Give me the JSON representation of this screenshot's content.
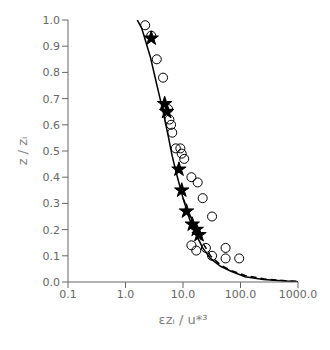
{
  "chart_data": {
    "type": "line",
    "title": "",
    "xlabel": "εzᵢ / u*³",
    "ylabel": "z / zᵢ",
    "log": "x",
    "grid": false,
    "xlim": [
      0.1,
      1000.0
    ],
    "ylim": [
      0.0,
      1.0
    ],
    "xticks": [
      0.1,
      {
        "value": 1.0,
        "label": "1.0"
      },
      {
        "value": 10.0,
        "label": "10.0"
      },
      {
        "value": 100.0,
        "label": "100.0"
      },
      {
        "value": 1000.0,
        "label": "1000.0"
      }
    ],
    "yticks": [
      {
        "value": 0.0,
        "label": "0.0"
      },
      0.1,
      0.2,
      0.3,
      0.4,
      0.5,
      0.6,
      0.7,
      0.8,
      0.9,
      {
        "value": 1.0,
        "label": "1.0"
      }
    ],
    "series": [
      {
        "type": "line",
        "line_style": "solid",
        "color": "#000000",
        "x": [
          1.6,
          1.9,
          2.1,
          2.3,
          2.7,
          3.2,
          3.8,
          4.5,
          5.5,
          6.5,
          8.0,
          10.0,
          13.0,
          17.0,
          22.0,
          30.0,
          45.0,
          70.0,
          120.0,
          250.0,
          600.0,
          1000.0
        ],
        "values": [
          1.0,
          0.97,
          0.94,
          0.91,
          0.86,
          0.79,
          0.72,
          0.65,
          0.56,
          0.48,
          0.4,
          0.32,
          0.24,
          0.18,
          0.13,
          0.09,
          0.06,
          0.04,
          0.02,
          0.01,
          0.004,
          0.001
        ]
      },
      {
        "type": "line",
        "line_style": "dashed",
        "color": "#000000",
        "x": [
          10.0,
          13.0,
          17.0,
          22.0,
          30.0,
          45.0,
          70.0,
          120.0,
          250.0,
          600.0,
          1000.0
        ],
        "values": [
          0.32,
          0.26,
          0.2,
          0.15,
          0.1,
          0.065,
          0.043,
          0.025,
          0.012,
          0.005,
          0.002
        ]
      },
      {
        "type": "scatter",
        "marker": "circle",
        "color": "#000000",
        "x": [
          2.2,
          2.8,
          3.5,
          4.5,
          5.5,
          5.8,
          6.2,
          6.5,
          7.5,
          9.0,
          9.5,
          10.5,
          14.0,
          18.0,
          22.0,
          32.0,
          55.0,
          14.0,
          17.0,
          25.0,
          32.0,
          55.0,
          95.0
        ],
        "values": [
          0.98,
          0.94,
          0.85,
          0.78,
          0.66,
          0.62,
          0.6,
          0.57,
          0.51,
          0.51,
          0.49,
          0.47,
          0.4,
          0.38,
          0.32,
          0.25,
          0.13,
          0.14,
          0.12,
          0.13,
          0.1,
          0.09,
          0.09
        ]
      },
      {
        "type": "scatter",
        "marker": "star",
        "color": "#000000",
        "x": [
          2.8,
          4.8,
          5.2,
          8.5,
          9.5,
          11.5,
          14.5,
          17.0,
          19.0
        ],
        "values": [
          0.93,
          0.68,
          0.65,
          0.43,
          0.35,
          0.27,
          0.22,
          0.2,
          0.18
        ]
      }
    ]
  }
}
